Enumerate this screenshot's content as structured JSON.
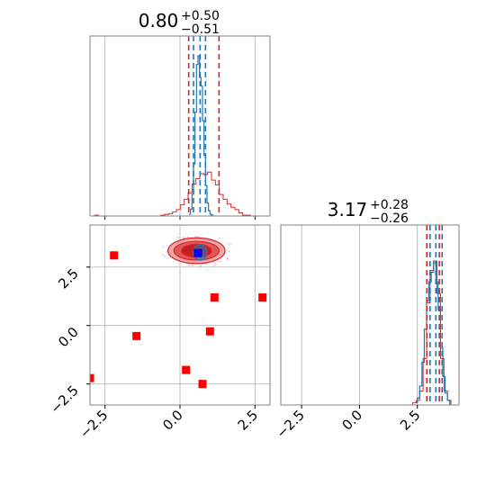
{
  "chart_data": {
    "type": "corner",
    "colors": {
      "red": "#d62728",
      "blue": "#1f77b4",
      "marker_red": "#ff0000",
      "marker_blue": "#0000ff",
      "grid": "#b0b0b0",
      "fill_light": "#f0a6a6",
      "fill_mid": "#e3585a",
      "fill_dark": "#c81e23"
    },
    "titles": [
      {
        "param": 0,
        "value": "0.80",
        "plus": "+0.50",
        "minus": "−0.51"
      },
      {
        "param": 1,
        "value": "3.17",
        "plus": "+0.28",
        "minus": "−0.26"
      }
    ],
    "ranges": {
      "x0": [
        -3.0,
        3.0
      ],
      "x1": [
        -3.4,
        4.3
      ]
    },
    "tick_values": [
      -2.5,
      0.0,
      2.5
    ],
    "tick_labels": [
      "−2.5",
      "0.0",
      "2.5"
    ],
    "hist1d_param0": {
      "red_quantiles": [
        0.29,
        1.3
      ],
      "blue_quantiles": [
        0.45,
        0.67,
        0.85
      ],
      "bins_x": [
        -2.98,
        -2.85,
        -2.72,
        -2.59,
        -2.46,
        -2.33,
        -2.2,
        -2.07,
        -1.94,
        -1.81,
        -1.68,
        -1.55,
        -1.42,
        -1.29,
        -1.16,
        -1.03,
        -0.9,
        -0.77,
        -0.64,
        -0.51,
        -0.38,
        -0.25,
        -0.12,
        0.01,
        0.14,
        0.27,
        0.4,
        0.53,
        0.66,
        0.79,
        0.92,
        1.05,
        1.18,
        1.31,
        1.44,
        1.57,
        1.7,
        1.83,
        1.96,
        2.09,
        2.22,
        2.35,
        2.48,
        2.61,
        2.74,
        2.87,
        3.0
      ],
      "red_counts": [
        0,
        1,
        0,
        0,
        0,
        0,
        0,
        0,
        0,
        0,
        0,
        0,
        0,
        0,
        0,
        0,
        0,
        0,
        1,
        2,
        3,
        5,
        8,
        14,
        21,
        29,
        40,
        47,
        53,
        52,
        55,
        45,
        39,
        27,
        21,
        15,
        11,
        8,
        4,
        1,
        1,
        0,
        0,
        0,
        0,
        0
      ],
      "blue_x": [
        0.3,
        0.35,
        0.4,
        0.45,
        0.5,
        0.55,
        0.6,
        0.65,
        0.7,
        0.75,
        0.8,
        0.85,
        0.9,
        0.95,
        1.0,
        1.05,
        1.1
      ],
      "blue_counts": [
        2,
        8,
        25,
        60,
        120,
        175,
        185,
        160,
        150,
        110,
        70,
        35,
        15,
        6,
        2,
        1,
        0
      ]
    },
    "hist1d_param1": {
      "red_quantiles": [
        2.91,
        3.45
      ],
      "blue_quantiles": [
        3.05,
        3.3,
        3.57
      ],
      "bins_x": [
        -3.4,
        -3.25,
        -3.1,
        -2.95,
        -2.8,
        -2.65,
        -2.5,
        -2.35,
        -2.2,
        -2.05,
        -1.9,
        -1.75,
        -1.6,
        -1.45,
        -1.3,
        -1.15,
        -1.0,
        -0.85,
        -0.7,
        -0.55,
        -0.4,
        -0.25,
        -0.1,
        0.05,
        0.2,
        0.35,
        0.5,
        0.65,
        0.8,
        0.95,
        1.1,
        1.25,
        1.4,
        1.55,
        1.7,
        1.85,
        2.0,
        2.15,
        2.3,
        2.45,
        2.6,
        2.75,
        2.9,
        3.05,
        3.2,
        3.35,
        3.5,
        3.65,
        3.8,
        3.95,
        4.1,
        4.25
      ],
      "red_counts": [
        0,
        0,
        0,
        0,
        0,
        0,
        0,
        0,
        0,
        0,
        0,
        0,
        0,
        0,
        0,
        0,
        0,
        0,
        0,
        0,
        0,
        0,
        0,
        0,
        0,
        0,
        0,
        0,
        0,
        0,
        0,
        0,
        0,
        0,
        0,
        0,
        0,
        0,
        1,
        2,
        6,
        20,
        44,
        58,
        62,
        48,
        20,
        6,
        2,
        0,
        0
      ],
      "blue_x": [
        2.4,
        2.5,
        2.6,
        2.7,
        2.8,
        2.9,
        3.0,
        3.1,
        3.2,
        3.3,
        3.4,
        3.5,
        3.6,
        3.7,
        3.8,
        3.9
      ],
      "blue_counts": [
        1,
        3,
        8,
        18,
        32,
        44,
        52,
        56,
        60,
        52,
        40,
        24,
        12,
        5,
        2,
        0
      ]
    },
    "scatter2d": {
      "contour_center": [
        0.55,
        3.2
      ],
      "contour_levels": [
        {
          "rx": 0.95,
          "ry": 0.55,
          "fill": "fill_light"
        },
        {
          "rx": 0.75,
          "ry": 0.4,
          "fill": "fill_mid"
        },
        {
          "rx": 0.5,
          "ry": 0.28,
          "fill": "fill_dark"
        }
      ],
      "blue_contours": [
        {
          "rx": 0.22,
          "ry": 0.32
        },
        {
          "rx": 0.14,
          "ry": 0.22
        }
      ],
      "red_markers": [
        {
          "x": -2.2,
          "y": 3.0
        },
        {
          "x": 1.15,
          "y": 1.2
        },
        {
          "x": 2.75,
          "y": 1.2
        },
        {
          "x": -1.45,
          "y": -0.45
        },
        {
          "x": 1.0,
          "y": -0.25
        },
        {
          "x": 0.2,
          "y": -1.9
        },
        {
          "x": -3.0,
          "y": -2.25
        },
        {
          "x": 0.75,
          "y": -2.5
        }
      ],
      "blue_marker": {
        "x": 0.6,
        "y": 3.1
      }
    }
  }
}
